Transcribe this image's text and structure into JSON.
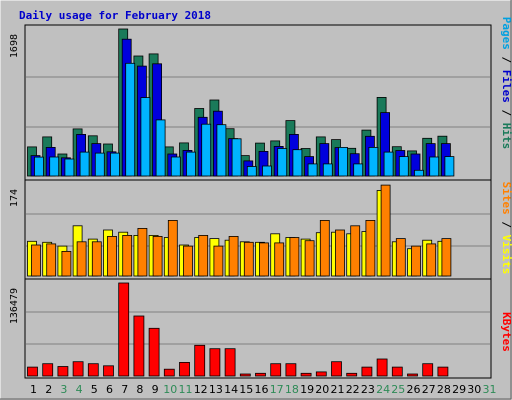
{
  "chart_data": {
    "type": "bar",
    "title": "Daily usage for February 2018",
    "categories": [
      "1",
      "2",
      "3",
      "4",
      "5",
      "6",
      "7",
      "8",
      "9",
      "10",
      "11",
      "12",
      "13",
      "14",
      "15",
      "16",
      "17",
      "18",
      "19",
      "20",
      "21",
      "22",
      "23",
      "24",
      "25",
      "26",
      "27",
      "28",
      "29",
      "30",
      "31"
    ],
    "weekend_days": [
      "3",
      "4",
      "10",
      "11",
      "17",
      "18",
      "24",
      "25",
      "31"
    ],
    "panels": [
      {
        "name": "hits-files-pages",
        "ymax_label": "1698",
        "ymax": 1698,
        "grid": true,
        "side_label": [
          {
            "text": "Pages",
            "color": "#00a0e0"
          },
          {
            "text": " / ",
            "color": "#000000"
          },
          {
            "text": "Files",
            "color": "#0000cc"
          },
          {
            "text": " / ",
            "color": "#000000"
          },
          {
            "text": "Hits",
            "color": "#1a7a5a"
          }
        ],
        "series": [
          {
            "name": "Hits",
            "color": "#1a7a5a",
            "values": [
              336,
              452,
              254,
              544,
              464,
              370,
              1698,
              1386,
              1410,
              336,
              382,
              780,
              878,
              546,
              236,
              380,
              406,
              640,
              318,
              452,
              420,
              320,
              530,
              908,
              338,
              290,
              436,
              460,
              null,
              null,
              null
            ]
          },
          {
            "name": "Files",
            "color": "#0000dd",
            "values": [
              236,
              330,
              210,
              480,
              374,
              280,
              1580,
              1270,
              1296,
              254,
              296,
              678,
              748,
              432,
              174,
              284,
              342,
              480,
              224,
              374,
              328,
              258,
              458,
              732,
              294,
              254,
              374,
              374,
              null,
              null,
              null
            ]
          },
          {
            "name": "Pages",
            "color": "#00b4ff",
            "values": [
              218,
              220,
              196,
              276,
              264,
              264,
              1302,
              906,
              648,
              220,
              276,
              598,
              592,
              430,
              110,
              116,
              318,
              304,
              140,
              140,
              330,
              140,
              330,
              276,
              224,
              66,
              220,
              224,
              null,
              null,
              null
            ]
          }
        ]
      },
      {
        "name": "visits-sites",
        "ymax_label": "174",
        "ymax": 174,
        "grid": true,
        "side_label": [
          {
            "text": "Sites",
            "color": "#ff8000"
          },
          {
            "text": " / ",
            "color": "#000000"
          },
          {
            "text": "Visits",
            "color": "#ffff00"
          }
        ],
        "series": [
          {
            "name": "Visits",
            "color": "#ffff00",
            "values": [
              65,
              63,
              56,
              94,
              69,
              86,
              82,
              76,
              76,
              72,
              58,
              72,
              70,
              67,
              64,
              63,
              79,
              72,
              69,
              81,
              82,
              79,
              83,
              160,
              64,
              51,
              67,
              65,
              null,
              null,
              null
            ]
          },
          {
            "name": "Sites",
            "color": "#ff8000",
            "values": [
              58,
              60,
              46,
              64,
              64,
              74,
              76,
              89,
              74,
              104,
              56,
              76,
              56,
              74,
              63,
              62,
              62,
              72,
              66,
              104,
              86,
              94,
              104,
              170,
              70,
              56,
              60,
              70,
              null,
              null,
              null
            ]
          }
        ]
      },
      {
        "name": "kbytes",
        "ymax_label": "136479",
        "ymax": 136479,
        "grid": true,
        "side_label": [
          {
            "text": "KBytes",
            "color": "#ff0000"
          }
        ],
        "series": [
          {
            "name": "KBytes",
            "color": "#ff0000",
            "values": [
              13000,
              18000,
              14000,
              21000,
              18000,
              15000,
              136479,
              88000,
              70000,
              10000,
              20000,
              45000,
              40000,
              40000,
              3000,
              4000,
              18000,
              18000,
              4000,
              6000,
              21000,
              4000,
              13000,
              25000,
              13000,
              3000,
              18000,
              13000,
              null,
              null,
              null
            ]
          }
        ]
      }
    ]
  }
}
